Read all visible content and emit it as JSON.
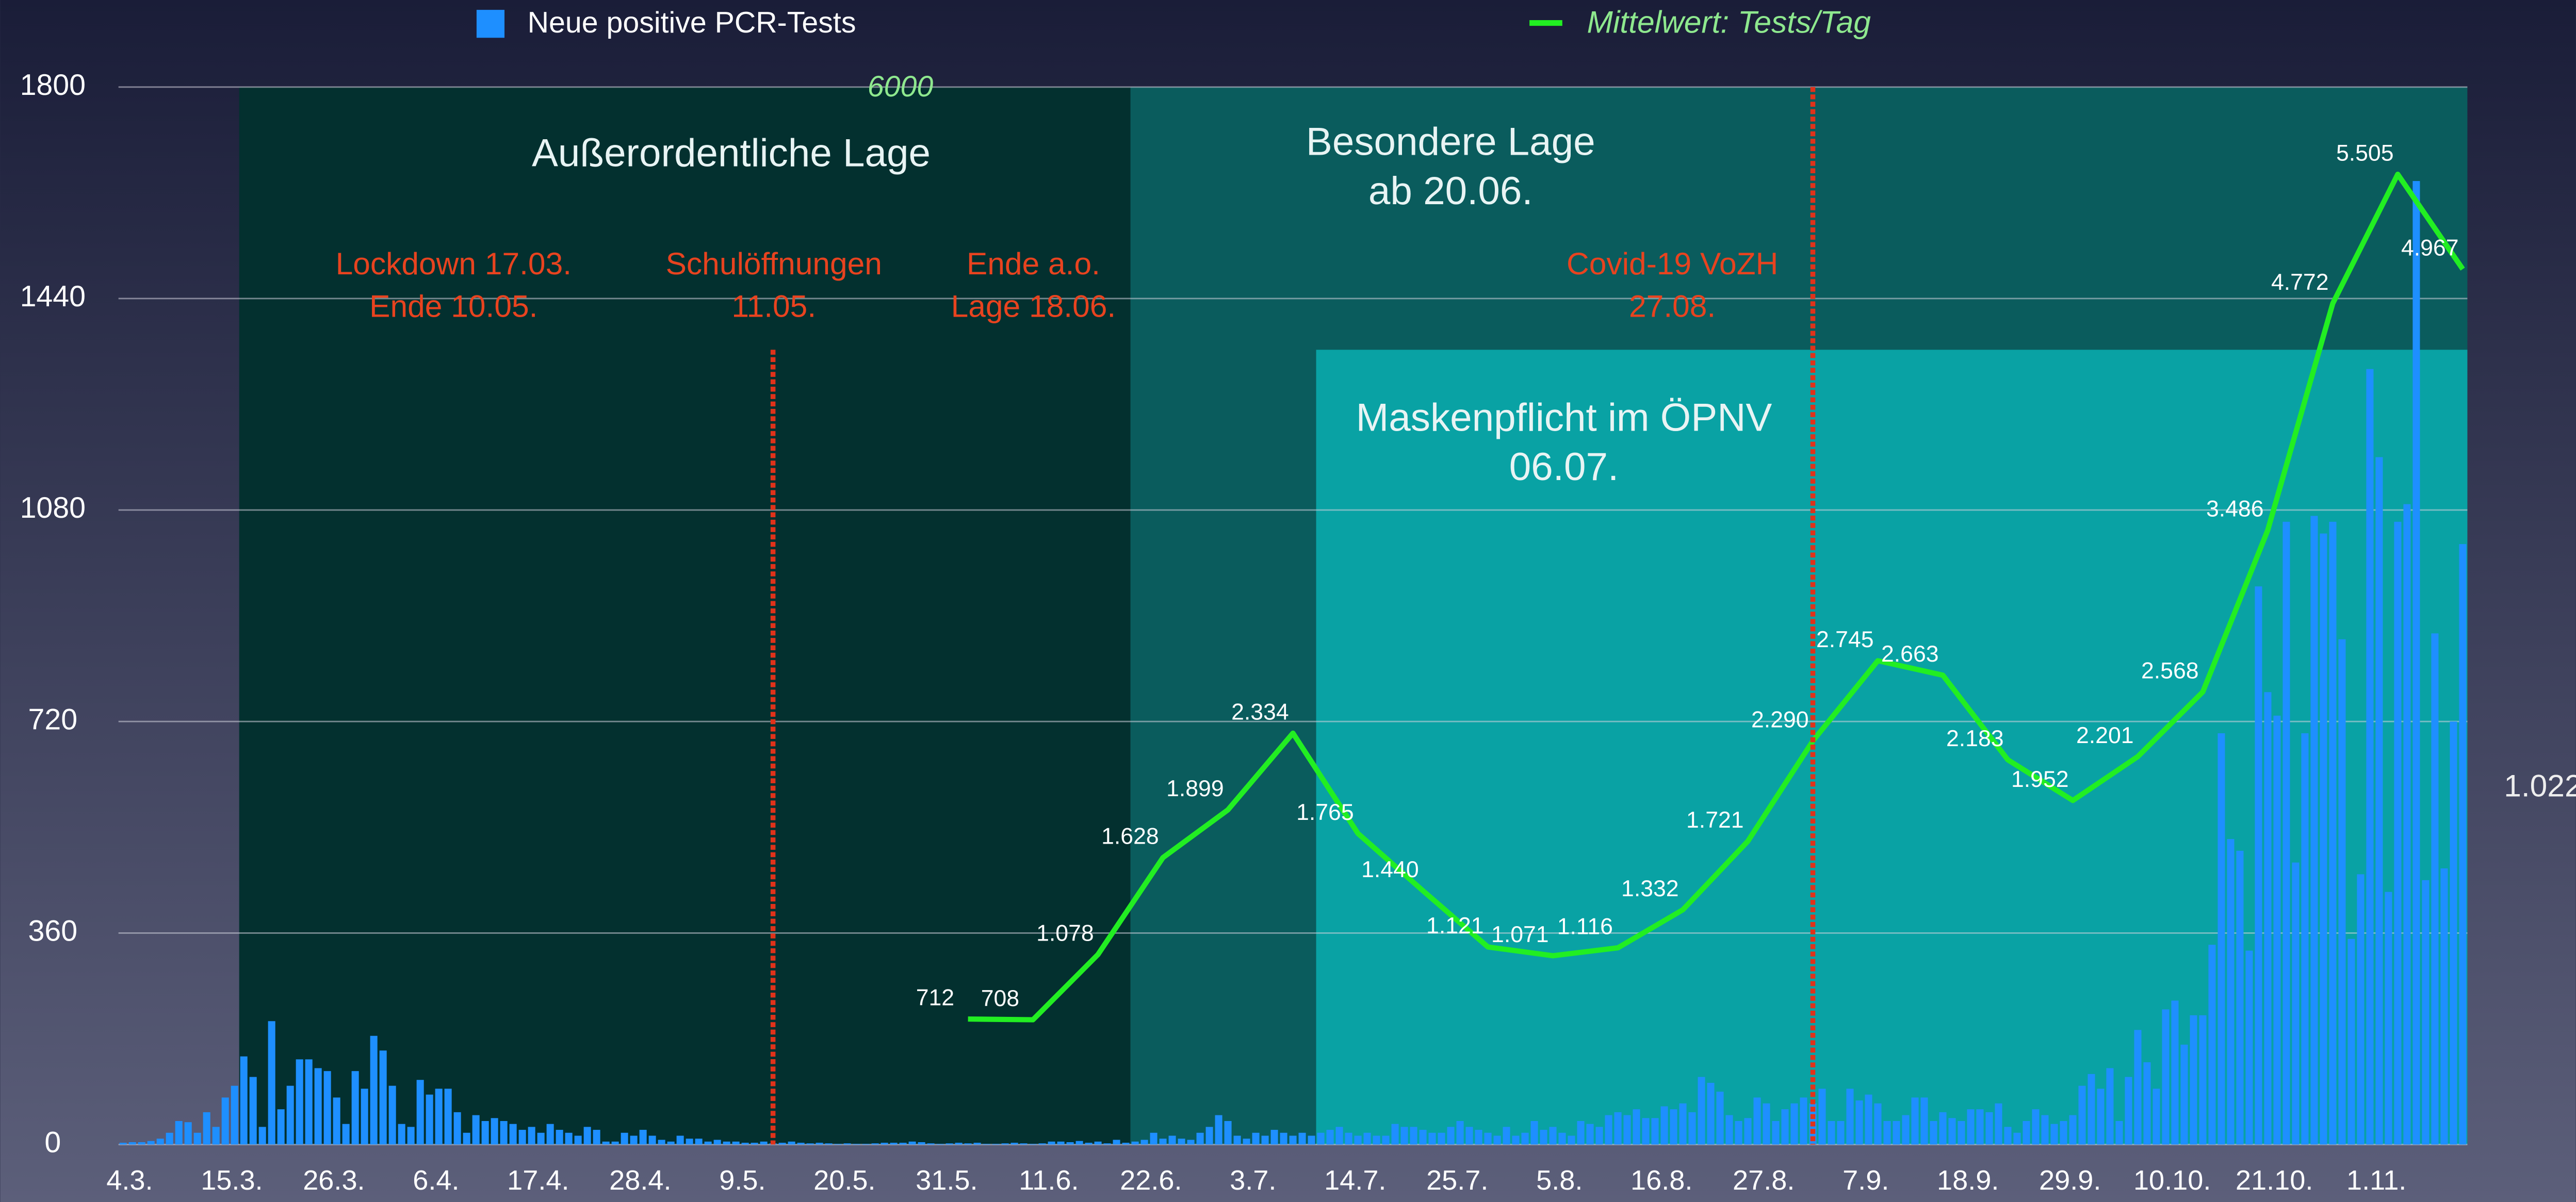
{
  "chart_data": {
    "type": "bar",
    "legend": "top",
    "grid": true,
    "xlim": [
      -0.5,
      252.5
    ],
    "xticks": [
      {
        "value": 0,
        "label": "4.3."
      },
      {
        "value": 11,
        "label": "15.3."
      },
      {
        "value": 22,
        "label": "26.3."
      },
      {
        "value": 33,
        "label": "6.4."
      },
      {
        "value": 44,
        "label": "17.4."
      },
      {
        "value": 55,
        "label": "28.4."
      },
      {
        "value": 66,
        "label": "9.5."
      },
      {
        "value": 77,
        "label": "20.5."
      },
      {
        "value": 88,
        "label": "31.5."
      },
      {
        "value": 99,
        "label": "11.6."
      },
      {
        "value": 110,
        "label": "22.6."
      },
      {
        "value": 121,
        "label": "3.7."
      },
      {
        "value": 132,
        "label": "14.7."
      },
      {
        "value": 143,
        "label": "25.7."
      },
      {
        "value": 154,
        "label": "5.8."
      },
      {
        "value": 165,
        "label": "16.8."
      },
      {
        "value": 176,
        "label": "27.8."
      },
      {
        "value": 187,
        "label": "7.9."
      },
      {
        "value": 198,
        "label": "18.9."
      },
      {
        "value": 209,
        "label": "29.9."
      },
      {
        "value": 220,
        "label": "10.10."
      },
      {
        "value": 231,
        "label": "21.10."
      },
      {
        "value": 242,
        "label": "1.11."
      }
    ],
    "ylim": [
      0,
      1800
    ],
    "yticks": [
      0,
      360,
      720,
      1080,
      1440,
      1800
    ],
    "y2lim": [
      0,
      6000
    ],
    "y2ticks": [
      6000
    ],
    "regions": [
      {
        "lines": [
          "Außerordentliche Lage"
        ],
        "start": 13,
        "end": 109,
        "color": "#03302f"
      },
      {
        "lines": [
          "Besondere Lage",
          "ab 20.06."
        ],
        "start": 109,
        "end": 253,
        "color": "#0a5c5d"
      },
      {
        "lines": [
          "Maskenpflicht im ÖPNV",
          "06.07."
        ],
        "start": 129,
        "end": 253,
        "color": "#09a2a4"
      }
    ],
    "event_lines": [
      70,
      182
    ],
    "annotations": [
      {
        "lines": [
          "Lockdown 17.03.",
          "Ende 10.05."
        ]
      },
      {
        "lines": [
          "Schulöffnungen",
          "11.05."
        ]
      },
      {
        "lines": [
          "Ende a.o.",
          "Lage 18.06."
        ]
      },
      {
        "lines": [
          "Covid-19 VoZH",
          "27.08."
        ]
      }
    ],
    "series": [
      {
        "name": "Neue positive PCR-Tests",
        "color": "#1e8fff",
        "values": [
          3,
          4,
          4,
          6,
          10,
          20,
          40,
          38,
          20,
          55,
          30,
          80,
          100,
          150,
          115,
          30,
          210,
          60,
          100,
          145,
          145,
          130,
          125,
          80,
          35,
          125,
          95,
          185,
          160,
          100,
          35,
          30,
          110,
          85,
          95,
          95,
          55,
          20,
          50,
          40,
          45,
          40,
          35,
          25,
          30,
          20,
          35,
          25,
          20,
          15,
          30,
          25,
          5,
          5,
          20,
          15,
          25,
          15,
          8,
          5,
          15,
          10,
          10,
          5,
          8,
          5,
          5,
          3,
          3,
          5,
          2,
          3,
          5,
          3,
          2,
          3,
          2,
          1,
          2,
          1,
          1,
          2,
          3,
          3,
          3,
          5,
          4,
          2,
          1,
          2,
          3,
          2,
          3,
          1,
          1,
          2,
          3,
          2,
          1,
          2,
          5,
          5,
          4,
          6,
          3,
          5,
          2,
          8,
          3,
          5,
          8,
          20,
          10,
          15,
          10,
          8,
          20,
          30,
          50,
          40,
          15,
          10,
          20,
          15,
          25,
          20,
          15,
          20,
          15,
          20,
          25,
          30,
          20,
          15,
          20,
          15,
          15,
          35,
          30,
          30,
          25,
          20,
          20,
          30,
          40,
          30,
          25,
          20,
          15,
          30,
          15,
          20,
          40,
          25,
          30,
          20,
          15,
          40,
          35,
          30,
          50,
          55,
          50,
          60,
          45,
          45,
          65,
          60,
          70,
          55,
          115,
          105,
          90,
          50,
          40,
          45,
          80,
          70,
          40,
          60,
          70,
          80,
          70,
          95,
          40,
          40,
          95,
          75,
          85,
          70,
          40,
          40,
          50,
          80,
          80,
          40,
          55,
          45,
          40,
          60,
          60,
          55,
          70,
          30,
          20,
          40,
          60,
          50,
          35,
          40,
          50,
          100,
          120,
          95,
          130,
          40,
          115,
          195,
          140,
          95,
          230,
          245,
          170,
          220,
          220,
          340,
          700,
          520,
          500,
          330,
          950,
          770,
          730,
          1060,
          480,
          700,
          1070,
          1040,
          1060,
          860,
          350,
          460,
          1320,
          1170,
          430,
          1060,
          1090,
          1640,
          450,
          870,
          470,
          720,
          1022
        ],
        "value_labels": [
          null,
          null,
          null,
          null,
          null,
          null,
          null,
          null,
          null,
          null,
          null,
          null,
          null,
          null,
          null,
          null,
          null,
          null,
          null,
          null,
          null,
          null,
          null,
          null,
          null,
          null,
          null,
          null,
          null,
          null,
          null,
          null,
          null,
          null,
          null,
          null,
          null,
          null,
          null,
          null,
          null,
          null,
          null,
          null,
          null,
          null,
          null,
          null,
          null,
          null,
          null,
          null,
          null,
          null,
          null,
          null,
          null,
          null,
          null,
          null,
          null,
          null,
          null,
          null,
          null,
          null,
          null,
          null,
          null,
          null,
          null,
          null,
          null,
          null,
          null,
          null,
          null,
          null,
          null,
          null,
          null,
          null,
          null,
          null,
          null,
          null,
          null,
          null,
          null,
          null,
          null,
          null,
          null,
          null,
          null,
          null,
          null,
          null,
          null,
          null,
          null,
          null,
          null,
          null,
          null,
          null,
          null,
          null,
          null,
          null,
          null,
          null,
          null,
          null,
          null,
          null,
          null,
          null,
          null,
          null,
          null,
          null,
          null,
          null,
          null,
          null,
          null,
          null,
          null,
          null,
          null,
          null,
          null,
          null,
          null,
          null,
          null,
          null,
          null,
          null,
          null,
          null,
          null,
          null,
          null,
          null,
          null,
          null,
          null,
          null,
          null,
          null,
          null,
          null,
          null,
          null,
          null,
          null,
          null,
          null,
          null,
          null,
          null,
          null,
          null,
          null,
          null,
          null,
          null,
          null,
          null,
          null,
          null,
          null,
          null,
          null,
          null,
          null,
          null,
          null,
          null,
          null,
          null,
          null,
          null,
          null,
          null,
          null,
          null,
          null,
          null,
          null,
          null,
          null,
          null,
          null,
          null,
          null,
          null,
          null,
          null,
          null,
          null,
          null,
          null,
          null,
          null,
          null,
          null,
          null,
          null,
          null,
          null,
          null,
          null,
          null,
          null,
          null,
          null,
          null,
          null,
          null,
          null,
          null,
          null,
          null,
          null,
          null,
          null,
          null,
          null,
          null,
          null,
          null,
          null,
          null,
          null,
          null,
          null,
          null,
          null,
          null,
          null,
          null,
          null,
          null,
          null,
          null,
          null,
          null,
          null,
          null,
          "1.022"
        ]
      },
      {
        "name": "Mittelwert: Tests/Tag",
        "color": "#22ee22",
        "type": "line",
        "axis": "y2",
        "x": [
          91,
          98,
          105,
          112,
          119,
          126,
          133,
          140,
          147,
          154,
          161,
          168,
          175,
          182,
          189,
          196,
          203,
          210,
          217,
          224,
          231,
          238,
          245,
          252
        ],
        "values": [
          712,
          708,
          1078,
          1628,
          1899,
          2334,
          1765,
          1440,
          1121,
          1071,
          1116,
          1332,
          1721,
          2290,
          2745,
          2663,
          2183,
          1952,
          2201,
          2568,
          3486,
          4772,
          5505,
          4967
        ],
        "value_labels": [
          "712",
          "708",
          "1.078",
          "1.628",
          "1.899",
          "2.334",
          "1.765",
          "1.440",
          "1.121",
          "1.071",
          "1.116",
          "1.332",
          "1.721",
          "2.290",
          "2.745",
          "2.663",
          "2.183",
          "1.952",
          "2.201",
          "2.568",
          "3.486",
          "4.772",
          "5.505",
          "4.967"
        ]
      }
    ]
  }
}
